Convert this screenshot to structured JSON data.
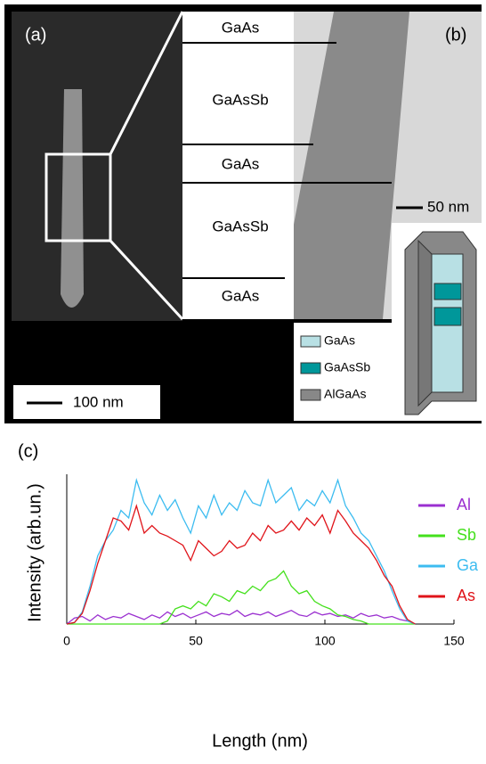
{
  "figure": {
    "panel_a": {
      "label": "(a)",
      "scale_bar": "100 nm"
    },
    "panel_b": {
      "label": "(b)",
      "layers": [
        "GaAs",
        "GaAsSb",
        "GaAs",
        "GaAsSb",
        "GaAs"
      ],
      "scale_bar": "50 nm"
    },
    "schematic_legend": [
      {
        "name": "GaAs",
        "color": "#b8e0e4"
      },
      {
        "name": "GaAsSb",
        "color": "#00979a"
      },
      {
        "name": "AlGaAs",
        "color": "#888888"
      }
    ]
  },
  "chart_data": {
    "type": "line",
    "panel_label": "(c)",
    "x_label": "Length (nm)",
    "y_label": "Intensity (arb.un.)",
    "x": [
      0,
      3,
      6,
      9,
      12,
      15,
      18,
      21,
      24,
      27,
      30,
      33,
      36,
      39,
      42,
      45,
      48,
      51,
      54,
      57,
      60,
      63,
      66,
      69,
      72,
      75,
      78,
      81,
      84,
      87,
      90,
      93,
      96,
      99,
      102,
      105,
      108,
      111,
      114,
      117,
      120,
      123,
      126,
      129,
      132,
      135
    ],
    "series": [
      {
        "name": "Al",
        "color": "#9b30d0",
        "values": [
          0,
          0.04,
          0.05,
          0.02,
          0.06,
          0.03,
          0.05,
          0.04,
          0.07,
          0.05,
          0.03,
          0.06,
          0.04,
          0.08,
          0.05,
          0.07,
          0.04,
          0.06,
          0.08,
          0.05,
          0.07,
          0.06,
          0.09,
          0.05,
          0.07,
          0.06,
          0.08,
          0.05,
          0.07,
          0.09,
          0.06,
          0.05,
          0.08,
          0.06,
          0.07,
          0.05,
          0.06,
          0.04,
          0.07,
          0.05,
          0.06,
          0.04,
          0.05,
          0.03,
          0.02,
          0
        ]
      },
      {
        "name": "Sb",
        "color": "#44e01c",
        "values": [
          0,
          0,
          0,
          0,
          0,
          0,
          0,
          0,
          0,
          0,
          0,
          0,
          0,
          0.02,
          0.1,
          0.12,
          0.1,
          0.15,
          0.12,
          0.2,
          0.18,
          0.15,
          0.22,
          0.2,
          0.25,
          0.22,
          0.28,
          0.3,
          0.35,
          0.25,
          0.2,
          0.22,
          0.15,
          0.12,
          0.1,
          0.06,
          0.05,
          0.03,
          0.02,
          0,
          0,
          0,
          0,
          0,
          0,
          0
        ]
      },
      {
        "name": "Ga",
        "color": "#3cbcf0",
        "values": [
          0,
          0.01,
          0.08,
          0.25,
          0.45,
          0.55,
          0.62,
          0.75,
          0.7,
          0.95,
          0.8,
          0.72,
          0.85,
          0.75,
          0.82,
          0.7,
          0.6,
          0.78,
          0.7,
          0.85,
          0.72,
          0.8,
          0.75,
          0.88,
          0.8,
          0.78,
          0.95,
          0.8,
          0.85,
          0.9,
          0.75,
          0.82,
          0.78,
          0.88,
          0.8,
          0.95,
          0.78,
          0.7,
          0.6,
          0.55,
          0.45,
          0.35,
          0.22,
          0.1,
          0.02,
          0
        ]
      },
      {
        "name": "As",
        "color": "#e0141a",
        "values": [
          0,
          0.01,
          0.07,
          0.22,
          0.4,
          0.55,
          0.7,
          0.68,
          0.62,
          0.78,
          0.6,
          0.65,
          0.6,
          0.58,
          0.55,
          0.52,
          0.42,
          0.55,
          0.5,
          0.45,
          0.48,
          0.55,
          0.5,
          0.52,
          0.6,
          0.55,
          0.65,
          0.6,
          0.62,
          0.68,
          0.62,
          0.7,
          0.65,
          0.72,
          0.6,
          0.75,
          0.68,
          0.6,
          0.55,
          0.5,
          0.42,
          0.32,
          0.25,
          0.12,
          0.03,
          0
        ]
      }
    ],
    "xlim": [
      0,
      150
    ],
    "xticks": [
      0,
      50,
      100,
      150
    ],
    "ylim": [
      0,
      1
    ]
  }
}
